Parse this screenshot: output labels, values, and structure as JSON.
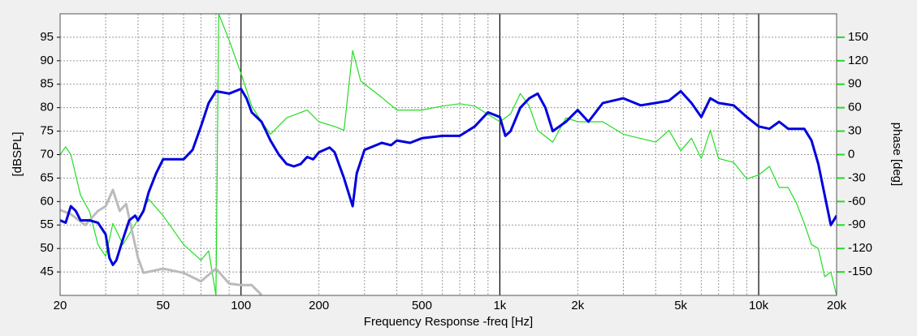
{
  "chart_data": {
    "type": "line",
    "xlabel": "Frequency Response -freq [Hz]",
    "ylabel": "[dBSPL]",
    "y2label": "phase [deg]",
    "xscale": "log",
    "xlim": [
      20,
      20000
    ],
    "ylim": [
      40,
      100
    ],
    "y2lim": [
      -180,
      180
    ],
    "xticks": [
      20,
      50,
      100,
      200,
      500,
      {
        "value": 1000,
        "label": "1k"
      },
      {
        "value": 2000,
        "label": "2k"
      },
      {
        "value": 5000,
        "label": "5k"
      },
      {
        "value": 10000,
        "label": "10k"
      },
      {
        "value": 20000,
        "label": "20k"
      }
    ],
    "xminorticks": [
      30,
      40,
      50,
      60,
      70,
      80,
      90,
      200,
      300,
      400,
      500,
      600,
      700,
      800,
      900,
      2000,
      3000,
      4000,
      5000,
      6000,
      7000,
      8000,
      9000
    ],
    "yticks": [
      45,
      50,
      55,
      60,
      65,
      70,
      75,
      80,
      85,
      90,
      95
    ],
    "y2ticks": [
      -150,
      -120,
      -90,
      -60,
      -30,
      0,
      30,
      60,
      90,
      120,
      150
    ],
    "grid": true,
    "series": [
      {
        "color": "#22dd22",
        "axis": "y2",
        "width": 1.2,
        "x": [
          20,
          21,
          22,
          24,
          26,
          28,
          30,
          32,
          35,
          40,
          44,
          50,
          60,
          70,
          75,
          80,
          82,
          85,
          90,
          100,
          110,
          120,
          130,
          150,
          180,
          200,
          230,
          250,
          270,
          290,
          350,
          400,
          500,
          600,
          700,
          800,
          1000,
          1100,
          1200,
          1300,
          1400,
          1600,
          1800,
          2000,
          2500,
          3000,
          4000,
          4500,
          5000,
          5500,
          6000,
          6500,
          7000,
          8000,
          9000,
          10000,
          11000,
          12000,
          13000,
          14000,
          15000,
          16000,
          17000,
          18000,
          19000,
          20000
        ],
        "values": [
          0,
          10,
          0,
          -52,
          -73,
          -115,
          -130,
          -88,
          -115,
          -83,
          -57,
          -78,
          -115,
          -135,
          -123,
          -180,
          180,
          167,
          146,
          104,
          62,
          42,
          26,
          47,
          57,
          42,
          36,
          31,
          133,
          94,
          73,
          57,
          57,
          62,
          65,
          62,
          42,
          52,
          78,
          62,
          31,
          16,
          47,
          42,
          42,
          26,
          16,
          31,
          5,
          21,
          -5,
          31,
          -5,
          -10,
          -31,
          -26,
          -15,
          -42,
          -42,
          -62,
          -88,
          -115,
          -120,
          -156,
          -150,
          -180
        ]
      },
      {
        "color": "#bbbbbb",
        "width": 3,
        "x": [
          20,
          22,
          25,
          28,
          30,
          32,
          34,
          36,
          38,
          40,
          42,
          50,
          60,
          70,
          80,
          90,
          100,
          110,
          120
        ],
        "values": [
          58.2,
          57.3,
          55,
          58,
          59,
          62.5,
          58,
          59.5,
          53.5,
          48,
          44.8,
          45.7,
          44.8,
          43,
          45.7,
          42.5,
          42.2,
          42.2,
          40.1
        ]
      },
      {
        "color": "#0000dd",
        "width": 3,
        "x": [
          20,
          21,
          22,
          23,
          24,
          26,
          28,
          30,
          31,
          32,
          33,
          35,
          37,
          39,
          40,
          42,
          44,
          47,
          50,
          55,
          60,
          65,
          70,
          75,
          80,
          90,
          100,
          105,
          110,
          120,
          130,
          140,
          150,
          160,
          170,
          180,
          190,
          200,
          220,
          230,
          250,
          270,
          280,
          300,
          350,
          380,
          400,
          450,
          500,
          600,
          700,
          800,
          900,
          1000,
          1050,
          1100,
          1200,
          1300,
          1400,
          1500,
          1600,
          1800,
          2000,
          2200,
          2500,
          3000,
          3500,
          4000,
          4500,
          5000,
          5500,
          6000,
          6500,
          7000,
          8000,
          9000,
          10000,
          11000,
          12000,
          13000,
          15000,
          16000,
          17000,
          19000,
          20000
        ],
        "values": [
          56,
          55.5,
          59,
          58,
          56,
          56,
          55.5,
          53,
          48,
          46.5,
          47.5,
          52,
          56,
          57,
          56,
          58,
          62,
          66,
          69,
          69,
          69,
          71,
          76,
          81,
          83.5,
          83,
          84,
          82,
          79,
          77,
          73,
          70,
          68,
          67.5,
          68,
          69.5,
          69,
          70.5,
          71.5,
          70.5,
          65,
          59,
          66,
          71,
          72.5,
          72,
          73,
          72.5,
          73.5,
          74,
          74,
          76,
          79,
          78,
          74,
          75,
          80,
          82,
          83,
          80,
          75,
          77,
          79.5,
          77,
          81,
          82,
          80.5,
          81,
          81.5,
          83.5,
          81,
          78,
          82,
          81,
          80.5,
          78,
          76,
          75.5,
          77,
          75.5,
          75.5,
          73,
          68,
          55,
          57
        ]
      }
    ]
  }
}
